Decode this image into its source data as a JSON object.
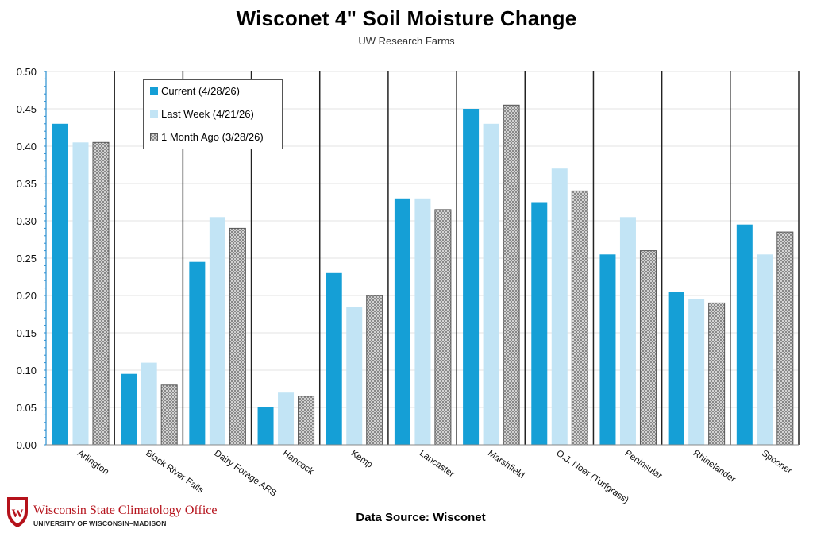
{
  "colors": {
    "current": "#159fd6",
    "last_week": "#c2e4f5",
    "month_ago_fill": "#d9d9d9",
    "month_ago_stroke": "#555555",
    "separator": "#222222",
    "grid": "#e3e3e3",
    "axis": "#2a8fd0",
    "brand_red": "#b5121b"
  },
  "footer": {
    "source": "Data Source: Wisconet",
    "org_name": "Wisconsin State Climatology Office",
    "org_sub": "UNIVERSITY OF WISCONSIN–MADISON",
    "logo_icon": "uw-crest-icon"
  },
  "chart_data": {
    "type": "bar",
    "title": "Wisconet 4\" Soil Moisture Change",
    "subtitle": "UW Research Farms",
    "xlabel": "",
    "ylabel": "",
    "ylim": [
      0,
      0.5
    ],
    "yticks": [
      "0.00",
      "0.05",
      "0.10",
      "0.15",
      "0.20",
      "0.25",
      "0.30",
      "0.35",
      "0.40",
      "0.45",
      "0.50"
    ],
    "grid": true,
    "legend_position": "top-left",
    "categories": [
      "Arlington",
      "Black River Falls",
      "Dairy Forage ARS",
      "Hancock",
      "Kemp",
      "Lancaster",
      "Marshfield",
      "O.J. Noer (Turfgrass)",
      "Peninsular",
      "Rhinelander",
      "Spooner"
    ],
    "series": [
      {
        "name": "Current (4/28/26)",
        "values": [
          0.43,
          0.095,
          0.245,
          0.05,
          0.23,
          0.33,
          0.45,
          0.325,
          0.255,
          0.205,
          0.295
        ]
      },
      {
        "name": "Last Week (4/21/26)",
        "values": [
          0.405,
          0.11,
          0.305,
          0.07,
          0.185,
          0.33,
          0.43,
          0.37,
          0.305,
          0.195,
          0.255
        ]
      },
      {
        "name": "1 Month Ago (3/28/26)",
        "values": [
          0.405,
          0.08,
          0.29,
          0.065,
          0.2,
          0.315,
          0.455,
          0.34,
          0.26,
          0.19,
          0.285
        ]
      }
    ]
  }
}
